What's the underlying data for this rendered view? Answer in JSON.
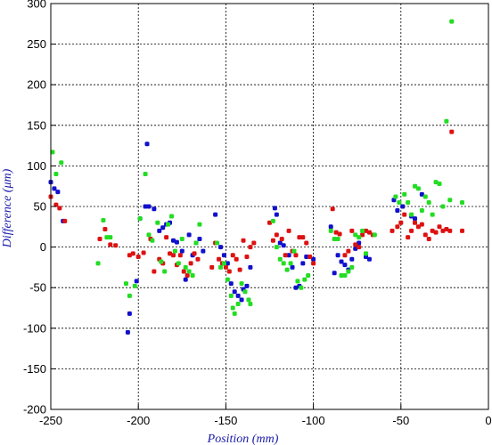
{
  "chart_data": {
    "type": "scatter",
    "title": "",
    "xlabel": "Position (mm)",
    "ylabel": "Difference (μm)",
    "xlim": [
      -250,
      0
    ],
    "ylim": [
      -200,
      300
    ],
    "xticks": [
      -250,
      -200,
      -150,
      -100,
      -50,
      0
    ],
    "yticks": [
      -200,
      -150,
      -100,
      -50,
      0,
      50,
      100,
      150,
      200,
      250,
      300
    ],
    "grid": true,
    "legend": "none",
    "series": [
      {
        "color": "#1010cc",
        "points": [
          [
            -250,
            80
          ],
          [
            -248,
            72
          ],
          [
            -246,
            68
          ],
          [
            -243,
            32
          ],
          [
            -206,
            -105
          ],
          [
            -205,
            -82
          ],
          [
            -201,
            -42
          ],
          [
            -199,
            35
          ],
          [
            -196,
            50
          ],
          [
            -195,
            127
          ],
          [
            -194,
            50
          ],
          [
            -191,
            47
          ],
          [
            -188,
            20
          ],
          [
            -186,
            24
          ],
          [
            -184,
            28
          ],
          [
            -182,
            30
          ],
          [
            -180,
            8
          ],
          [
            -178,
            6
          ],
          [
            -175,
            -5
          ],
          [
            -173,
            -40
          ],
          [
            -171,
            15
          ],
          [
            -169,
            -10
          ],
          [
            -167,
            5
          ],
          [
            -165,
            10
          ],
          [
            -163,
            -5
          ],
          [
            -156,
            40
          ],
          [
            -153,
            0
          ],
          [
            -151,
            -10
          ],
          [
            -149,
            -20
          ],
          [
            -147,
            -45
          ],
          [
            -145,
            -55
          ],
          [
            -143,
            -60
          ],
          [
            -141,
            -65
          ],
          [
            -140,
            -52
          ],
          [
            -138,
            -48
          ],
          [
            -136,
            -25
          ],
          [
            -122,
            48
          ],
          [
            -121,
            40
          ],
          [
            -119,
            5
          ],
          [
            -117,
            2
          ],
          [
            -114,
            -10
          ],
          [
            -112,
            -25
          ],
          [
            -110,
            -50
          ],
          [
            -108,
            -48
          ],
          [
            -106,
            -20
          ],
          [
            -104,
            -12
          ],
          [
            -100,
            -15
          ],
          [
            -90,
            25
          ],
          [
            -88,
            -32
          ],
          [
            -86,
            -10
          ],
          [
            -84,
            -18
          ],
          [
            -82,
            -22
          ],
          [
            -80,
            -28
          ],
          [
            -78,
            -15
          ],
          [
            -76,
            -2
          ],
          [
            -74,
            5
          ],
          [
            -70,
            -12
          ],
          [
            -68,
            -15
          ],
          [
            -54,
            58
          ],
          [
            -52,
            45
          ],
          [
            -49,
            50
          ],
          [
            -44,
            38
          ],
          [
            -42,
            35
          ],
          [
            -38,
            65
          ]
        ]
      },
      {
        "color": "#dd1111",
        "points": [
          [
            -250,
            62
          ],
          [
            -247,
            52
          ],
          [
            -245,
            48
          ],
          [
            -242,
            32
          ],
          [
            -222,
            10
          ],
          [
            -219,
            22
          ],
          [
            -216,
            3
          ],
          [
            -213,
            2
          ],
          [
            -205,
            -10
          ],
          [
            -203,
            -8
          ],
          [
            -200,
            -12
          ],
          [
            -197,
            -7
          ],
          [
            -193,
            10
          ],
          [
            -191,
            -30
          ],
          [
            -188,
            -15
          ],
          [
            -186,
            -20
          ],
          [
            -184,
            12
          ],
          [
            -182,
            -8
          ],
          [
            -180,
            -10
          ],
          [
            -178,
            -22
          ],
          [
            -176,
            -10
          ],
          [
            -174,
            -30
          ],
          [
            -172,
            -35
          ],
          [
            -170,
            -20
          ],
          [
            -168,
            -8
          ],
          [
            -166,
            -15
          ],
          [
            -158,
            -25
          ],
          [
            -156,
            5
          ],
          [
            -154,
            -15
          ],
          [
            -152,
            -20
          ],
          [
            -150,
            -25
          ],
          [
            -148,
            -30
          ],
          [
            -146,
            -10
          ],
          [
            -144,
            -15
          ],
          [
            -142,
            -28
          ],
          [
            -140,
            8
          ],
          [
            -138,
            -12
          ],
          [
            -136,
            0
          ],
          [
            -134,
            5
          ],
          [
            -125,
            30
          ],
          [
            -123,
            8
          ],
          [
            -121,
            15
          ],
          [
            -118,
            10
          ],
          [
            -116,
            -10
          ],
          [
            -114,
            20
          ],
          [
            -112,
            -5
          ],
          [
            -110,
            -10
          ],
          [
            -108,
            12
          ],
          [
            -106,
            12
          ],
          [
            -104,
            5
          ],
          [
            -102,
            -12
          ],
          [
            -100,
            -20
          ],
          [
            -89,
            47
          ],
          [
            -87,
            18
          ],
          [
            -85,
            16
          ],
          [
            -82,
            -10
          ],
          [
            -80,
            -5
          ],
          [
            -78,
            20
          ],
          [
            -76,
            3
          ],
          [
            -74,
            0
          ],
          [
            -72,
            15
          ],
          [
            -70,
            20
          ],
          [
            -68,
            18
          ],
          [
            -66,
            15
          ],
          [
            -55,
            20
          ],
          [
            -52,
            25
          ],
          [
            -50,
            30
          ],
          [
            -48,
            40
          ],
          [
            -46,
            12
          ],
          [
            -44,
            20
          ],
          [
            -42,
            30
          ],
          [
            -40,
            25
          ],
          [
            -38,
            28
          ],
          [
            -36,
            15
          ],
          [
            -34,
            10
          ],
          [
            -32,
            20
          ],
          [
            -30,
            18
          ],
          [
            -28,
            25
          ],
          [
            -26,
            20
          ],
          [
            -24,
            22
          ],
          [
            -22,
            20
          ],
          [
            -21,
            142
          ],
          [
            -15,
            20
          ]
        ]
      },
      {
        "color": "#22dd22",
        "points": [
          [
            -249,
            117
          ],
          [
            -247,
            90
          ],
          [
            -244,
            104
          ],
          [
            -223,
            -20
          ],
          [
            -220,
            33
          ],
          [
            -218,
            12
          ],
          [
            -216,
            12
          ],
          [
            -207,
            -45
          ],
          [
            -205,
            -60
          ],
          [
            -202,
            -48
          ],
          [
            -199,
            35
          ],
          [
            -196,
            90
          ],
          [
            -194,
            15
          ],
          [
            -192,
            8
          ],
          [
            -189,
            30
          ],
          [
            -187,
            -18
          ],
          [
            -185,
            -30
          ],
          [
            -183,
            28
          ],
          [
            -181,
            38
          ],
          [
            -179,
            -5
          ],
          [
            -177,
            -20
          ],
          [
            -175,
            10
          ],
          [
            -173,
            -25
          ],
          [
            -171,
            -30
          ],
          [
            -169,
            -35
          ],
          [
            -167,
            5
          ],
          [
            -165,
            28
          ],
          [
            -155,
            5
          ],
          [
            -153,
            -25
          ],
          [
            -151,
            -20
          ],
          [
            -149,
            -40
          ],
          [
            -147,
            -60
          ],
          [
            -146,
            -75
          ],
          [
            -145,
            -82
          ],
          [
            -143,
            -70
          ],
          [
            -141,
            -45
          ],
          [
            -139,
            -55
          ],
          [
            -137,
            -65
          ],
          [
            -136,
            -70
          ],
          [
            -123,
            32
          ],
          [
            -121,
            0
          ],
          [
            -119,
            -15
          ],
          [
            -117,
            -20
          ],
          [
            -115,
            -28
          ],
          [
            -113,
            -20
          ],
          [
            -111,
            -5
          ],
          [
            -109,
            -42
          ],
          [
            -107,
            -50
          ],
          [
            -105,
            -40
          ],
          [
            -103,
            -35
          ],
          [
            -90,
            20
          ],
          [
            -88,
            10
          ],
          [
            -86,
            10
          ],
          [
            -84,
            -35
          ],
          [
            -82,
            -35
          ],
          [
            -80,
            -30
          ],
          [
            -78,
            -25
          ],
          [
            -76,
            15
          ],
          [
            -74,
            12
          ],
          [
            -72,
            20
          ],
          [
            -70,
            -8
          ],
          [
            -65,
            15
          ],
          [
            -53,
            62
          ],
          [
            -51,
            55
          ],
          [
            -48,
            65
          ],
          [
            -46,
            55
          ],
          [
            -44,
            40
          ],
          [
            -42,
            75
          ],
          [
            -40,
            72
          ],
          [
            -38,
            45
          ],
          [
            -36,
            62
          ],
          [
            -34,
            55
          ],
          [
            -32,
            40
          ],
          [
            -30,
            80
          ],
          [
            -28,
            78
          ],
          [
            -26,
            50
          ],
          [
            -24,
            155
          ],
          [
            -22,
            58
          ],
          [
            -21,
            278
          ],
          [
            -15,
            55
          ]
        ]
      }
    ]
  }
}
